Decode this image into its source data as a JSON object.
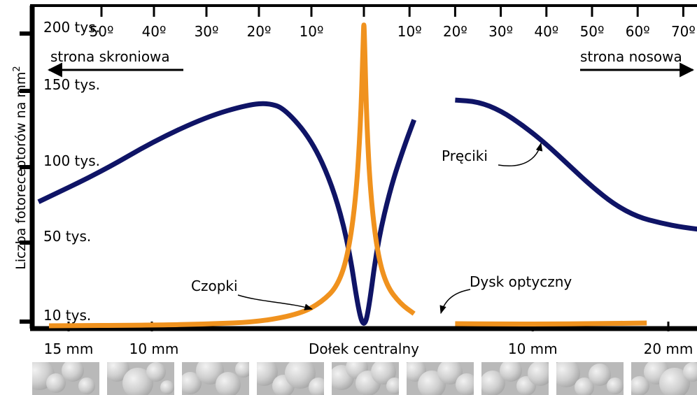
{
  "chart_data": {
    "type": "line",
    "ylabel": "Liczba fotoreceptorów na mm",
    "ylabel_sup": "2",
    "y_ticks": [
      {
        "value": 200000,
        "label": "200 tys."
      },
      {
        "value": 150000,
        "label": "150 tys."
      },
      {
        "value": 100000,
        "label": "100 tys."
      },
      {
        "value": 50000,
        "label": "50 tys."
      },
      {
        "value": 10000,
        "label": "10 tys."
      }
    ],
    "ylim": [
      0,
      210000
    ],
    "xlim": [
      -60,
      77
    ],
    "angle_ticks_left": [
      {
        "value": -50,
        "label": "50º"
      },
      {
        "value": -40,
        "label": "40º"
      },
      {
        "value": -30,
        "label": "30º"
      },
      {
        "value": -20,
        "label": "20º"
      },
      {
        "value": -10,
        "label": "10º"
      }
    ],
    "angle_ticks_right": [
      {
        "value": 10,
        "label": "10º"
      },
      {
        "value": 20,
        "label": "20º"
      },
      {
        "value": 30,
        "label": "30º"
      },
      {
        "value": 40,
        "label": "40º"
      },
      {
        "value": 50,
        "label": "50º"
      },
      {
        "value": 60,
        "label": "60º"
      },
      {
        "value": 70,
        "label": "70º"
      }
    ],
    "distance_labels": [
      {
        "value": -59,
        "label": "15 mm"
      },
      {
        "value": -40,
        "label": "10 mm"
      },
      {
        "value": 0,
        "label": "Dołek centralny"
      },
      {
        "value": 37,
        "label": "10 mm"
      },
      {
        "value": 73,
        "label": "20 mm"
      }
    ],
    "direction_labels": {
      "left": "strona skroniowa",
      "right": "strona nosowa"
    },
    "annotations": {
      "rods": "Pręciki",
      "cones": "Czopki",
      "blind_spot": "Dysk optyczny"
    },
    "optic_disc": [
      12,
      20
    ],
    "colors": {
      "rods": "#0f1466",
      "cones": "#f0921e",
      "axis": "#000000"
    },
    "series": [
      {
        "key": "rods",
        "segments": [
          [
            [
              -62,
              77000
            ],
            [
              -50,
              97000
            ],
            [
              -40,
              117000
            ],
            [
              -30,
              133000
            ],
            [
              -22,
              141000
            ],
            [
              -18,
              142000
            ],
            [
              -15,
              138000
            ],
            [
              -10,
              118000
            ],
            [
              -6,
              88000
            ],
            [
              -3,
              50000
            ],
            [
              -1,
              15000
            ],
            [
              0,
              2000
            ],
            [
              1,
              15000
            ],
            [
              3,
              50000
            ],
            [
              6,
              88000
            ],
            [
              9,
              115000
            ],
            [
              11,
              131000
            ]
          ],
          [
            [
              20,
              144000
            ],
            [
              25,
              143000
            ],
            [
              30,
              137000
            ],
            [
              35,
              127000
            ],
            [
              40,
              115000
            ],
            [
              45,
              101000
            ],
            [
              50,
              87000
            ],
            [
              55,
              75000
            ],
            [
              60,
              67000
            ],
            [
              65,
              63000
            ],
            [
              70,
              60000
            ],
            [
              76,
              58000
            ]
          ]
        ]
      },
      {
        "key": "cones",
        "segments": [
          [
            [
              -60,
              4000
            ],
            [
              -40,
              5000
            ],
            [
              -30,
              6500
            ],
            [
              -20,
              9500
            ],
            [
              -12,
              14000
            ],
            [
              -8,
              20000
            ],
            [
              -5,
              28000
            ],
            [
              -3,
              44000
            ],
            [
              -1.5,
              80000
            ],
            [
              -0.6,
              130000
            ],
            [
              -0.1,
              200000
            ],
            [
              0,
              210000
            ],
            [
              0.1,
              200000
            ],
            [
              0.6,
              130000
            ],
            [
              1.5,
              80000
            ],
            [
              3,
              44000
            ],
            [
              5,
              28000
            ],
            [
              8,
              19000
            ],
            [
              11,
              14000
            ]
          ],
          [
            [
              20,
              7000
            ],
            [
              30,
              6500
            ],
            [
              40,
              6500
            ],
            [
              50,
              7000
            ],
            [
              62,
              8000
            ]
          ]
        ]
      }
    ]
  },
  "thumbnails": [
    {
      "cells": [
        [
          10,
          18,
          22
        ],
        [
          34,
          30,
          14
        ],
        [
          58,
          12,
          16
        ],
        [
          78,
          34,
          12
        ]
      ]
    },
    {
      "cells": [
        [
          14,
          10,
          18
        ],
        [
          44,
          30,
          22
        ],
        [
          70,
          14,
          14
        ],
        [
          86,
          36,
          10
        ]
      ]
    },
    {
      "cells": [
        [
          12,
          30,
          16
        ],
        [
          40,
          12,
          20
        ],
        [
          66,
          32,
          18
        ],
        [
          88,
          10,
          12
        ]
      ]
    },
    {
      "cells": [
        [
          10,
          14,
          20
        ],
        [
          38,
          34,
          16
        ],
        [
          62,
          16,
          22
        ],
        [
          88,
          36,
          14
        ]
      ]
    },
    {
      "cells": [
        [
          14,
          22,
          18
        ],
        [
          36,
          8,
          16
        ],
        [
          52,
          30,
          18
        ],
        [
          74,
          14,
          18
        ],
        [
          90,
          34,
          12
        ]
      ]
    },
    {
      "cells": [
        [
          12,
          12,
          16
        ],
        [
          36,
          32,
          20
        ],
        [
          62,
          14,
          18
        ],
        [
          86,
          32,
          16
        ]
      ]
    },
    {
      "cells": [
        [
          16,
          30,
          18
        ],
        [
          42,
          12,
          16
        ],
        [
          64,
          34,
          14
        ],
        [
          84,
          16,
          18
        ]
      ]
    },
    {
      "cells": [
        [
          14,
          16,
          20
        ],
        [
          40,
          36,
          14
        ],
        [
          62,
          18,
          16
        ],
        [
          84,
          34,
          12
        ]
      ]
    },
    {
      "cells": [
        [
          12,
          34,
          14
        ],
        [
          36,
          14,
          18
        ],
        [
          62,
          30,
          22
        ],
        [
          88,
          14,
          14
        ]
      ]
    }
  ]
}
